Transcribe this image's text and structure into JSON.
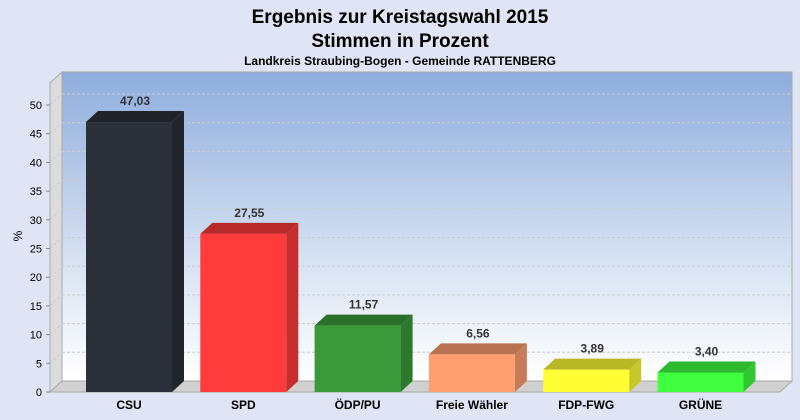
{
  "chart_data": {
    "type": "bar",
    "title": "Ergebnis zur Kreistagswahl 2015",
    "subtitle": "Stimmen in Prozent",
    "subsubtitle": "Landkreis Straubing-Bogen - Gemeinde RATTENBERG",
    "xlabel": "",
    "ylabel": "%",
    "ylim": [
      0,
      50
    ],
    "yticks": [
      0,
      5,
      10,
      15,
      20,
      25,
      30,
      35,
      40,
      45,
      50
    ],
    "grid": true,
    "categories": [
      "CSU",
      "SPD",
      "ÖDP/PU",
      "Freie Wähler",
      "FDP-FWG",
      "GRÜNE"
    ],
    "values": [
      47.03,
      27.55,
      11.57,
      6.56,
      3.89,
      3.4
    ],
    "value_labels": [
      "47,03",
      "27,55",
      "11,57",
      "6,56",
      "3,89",
      "3,40"
    ],
    "colors": [
      "#2c3039",
      "#ff3b3b",
      "#3a9a3a",
      "#ff9f70",
      "#ffff33",
      "#3fff3f"
    ]
  }
}
